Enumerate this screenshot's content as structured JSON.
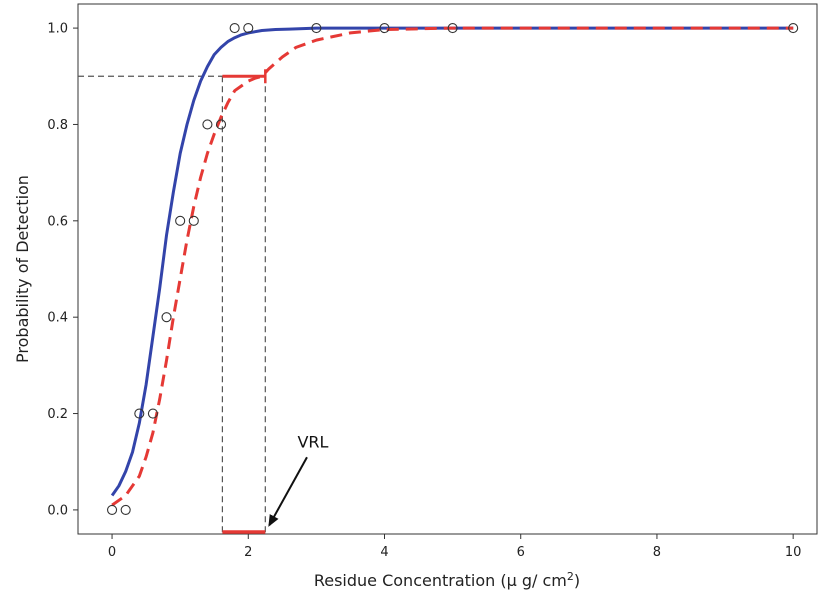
{
  "chart_data": {
    "type": "scatter",
    "title": "",
    "xlabel": "Residue Concentration (μ g/ cm",
    "xlabel_sup": "2",
    "xlabel_close": ")",
    "ylabel": "Probability of Detection",
    "xlim": [
      -0.5,
      10.35
    ],
    "ylim": [
      -0.05,
      1.05
    ],
    "xticks": [
      0,
      2,
      4,
      6,
      8,
      10
    ],
    "yticks": [
      0.0,
      0.2,
      0.4,
      0.6,
      0.8,
      1.0
    ],
    "xtick_labels": [
      "0",
      "2",
      "4",
      "6",
      "8",
      "10"
    ],
    "ytick_labels": [
      "0.0",
      "0.2",
      "0.4",
      "0.6",
      "0.8",
      "1.0"
    ],
    "grid": false,
    "points": [
      {
        "x": 0.0,
        "y": 0.0
      },
      {
        "x": 0.2,
        "y": 0.0
      },
      {
        "x": 0.4,
        "y": 0.2
      },
      {
        "x": 0.6,
        "y": 0.2
      },
      {
        "x": 0.8,
        "y": 0.4
      },
      {
        "x": 1.0,
        "y": 0.6
      },
      {
        "x": 1.2,
        "y": 0.6
      },
      {
        "x": 1.4,
        "y": 0.8
      },
      {
        "x": 1.6,
        "y": 0.8
      },
      {
        "x": 1.8,
        "y": 1.0
      },
      {
        "x": 2.0,
        "y": 1.0
      },
      {
        "x": 3.0,
        "y": 1.0
      },
      {
        "x": 4.0,
        "y": 1.0
      },
      {
        "x": 5.0,
        "y": 1.0
      },
      {
        "x": 10.0,
        "y": 1.0
      }
    ],
    "curves": [
      {
        "style": "solid",
        "color": "#3344aa",
        "x": [
          0,
          0.1,
          0.2,
          0.3,
          0.4,
          0.5,
          0.6,
          0.7,
          0.8,
          0.9,
          1.0,
          1.1,
          1.2,
          1.3,
          1.4,
          1.5,
          1.6,
          1.7,
          1.8,
          1.9,
          2.0,
          2.2,
          2.4,
          2.6,
          2.8,
          3.0,
          3.5,
          4.0,
          5.0,
          10.0
        ],
        "y": [
          0.03,
          0.05,
          0.08,
          0.12,
          0.18,
          0.26,
          0.36,
          0.46,
          0.57,
          0.66,
          0.74,
          0.8,
          0.85,
          0.89,
          0.92,
          0.945,
          0.96,
          0.972,
          0.98,
          0.986,
          0.99,
          0.995,
          0.997,
          0.998,
          0.999,
          1.0,
          1.0,
          1.0,
          1.0,
          1.0
        ]
      },
      {
        "style": "dashed",
        "color": "#e53935",
        "x": [
          0,
          0.1,
          0.2,
          0.3,
          0.4,
          0.5,
          0.6,
          0.7,
          0.8,
          0.9,
          1.0,
          1.1,
          1.2,
          1.3,
          1.4,
          1.5,
          1.6,
          1.7,
          1.8,
          1.9,
          2.0,
          2.1,
          2.2,
          2.3,
          2.5,
          2.7,
          3.0,
          3.5,
          4.0,
          5.0,
          10.0
        ],
        "y": [
          0.01,
          0.02,
          0.03,
          0.05,
          0.07,
          0.11,
          0.16,
          0.23,
          0.31,
          0.4,
          0.48,
          0.56,
          0.63,
          0.69,
          0.74,
          0.78,
          0.815,
          0.845,
          0.87,
          0.88,
          0.89,
          0.896,
          0.9,
          0.915,
          0.94,
          0.96,
          0.975,
          0.99,
          0.997,
          1.0,
          1.0
        ]
      }
    ],
    "threshold_y": 0.9,
    "vrl": {
      "x_start": 1.62,
      "x_end": 2.25,
      "y": 0.9
    },
    "annotations": [
      {
        "text": "VRL",
        "x": 2.95,
        "y": 0.13,
        "arrow_to": [
          2.25,
          -0.04
        ]
      }
    ],
    "colors": {
      "solid": "#3344aa",
      "dashed": "#e53935",
      "ref": "#555555",
      "axis": "#333333"
    }
  }
}
